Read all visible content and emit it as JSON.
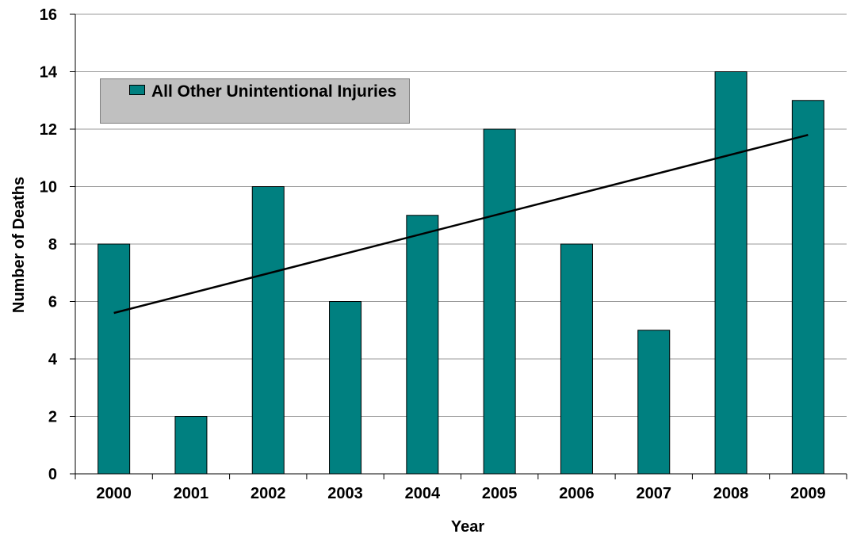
{
  "chart_data": {
    "type": "bar",
    "title": "",
    "xlabel": "Year",
    "ylabel": "Number of Deaths",
    "categories": [
      "2000",
      "2001",
      "2002",
      "2003",
      "2004",
      "2005",
      "2006",
      "2007",
      "2008",
      "2009"
    ],
    "series": [
      {
        "name": "All Other Unintentional Injuries",
        "values": [
          8,
          2,
          10,
          6,
          9,
          12,
          8,
          5,
          14,
          13
        ],
        "color": "#008080"
      }
    ],
    "trendline": {
      "type": "linear",
      "start": 5.6,
      "end": 11.8,
      "color": "#000000"
    },
    "ylim": [
      0,
      16
    ],
    "yticks": [
      "0",
      "2",
      "4",
      "6",
      "8",
      "10",
      "12",
      "14",
      "16"
    ],
    "grid": true,
    "legend": "top-left"
  }
}
